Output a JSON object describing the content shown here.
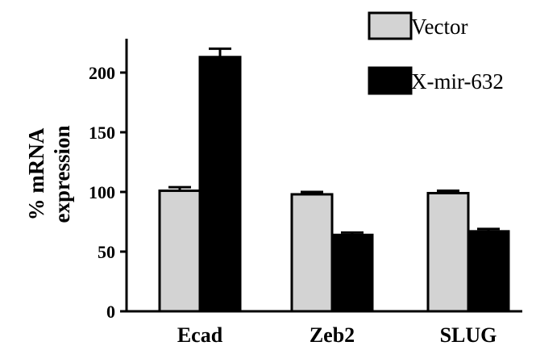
{
  "chart_data": {
    "type": "bar",
    "title": "",
    "ylabel_lines": [
      "% mRNA",
      "expression"
    ],
    "xlabel": "",
    "categories": [
      "Ecad",
      "Zeb2",
      "SLUG"
    ],
    "ylim": [
      0,
      225
    ],
    "yticks": [
      0,
      50,
      100,
      150,
      200
    ],
    "series": [
      {
        "name": "Vector",
        "values": [
          101,
          98,
          99
        ],
        "errors": [
          3,
          2,
          2
        ],
        "color": "#d3d3d3"
      },
      {
        "name": "X-mir-632",
        "values": [
          213,
          64,
          67
        ],
        "errors": [
          7,
          2,
          2
        ],
        "color": "#000000"
      }
    ],
    "grid": false,
    "legend_position": "top-right"
  }
}
